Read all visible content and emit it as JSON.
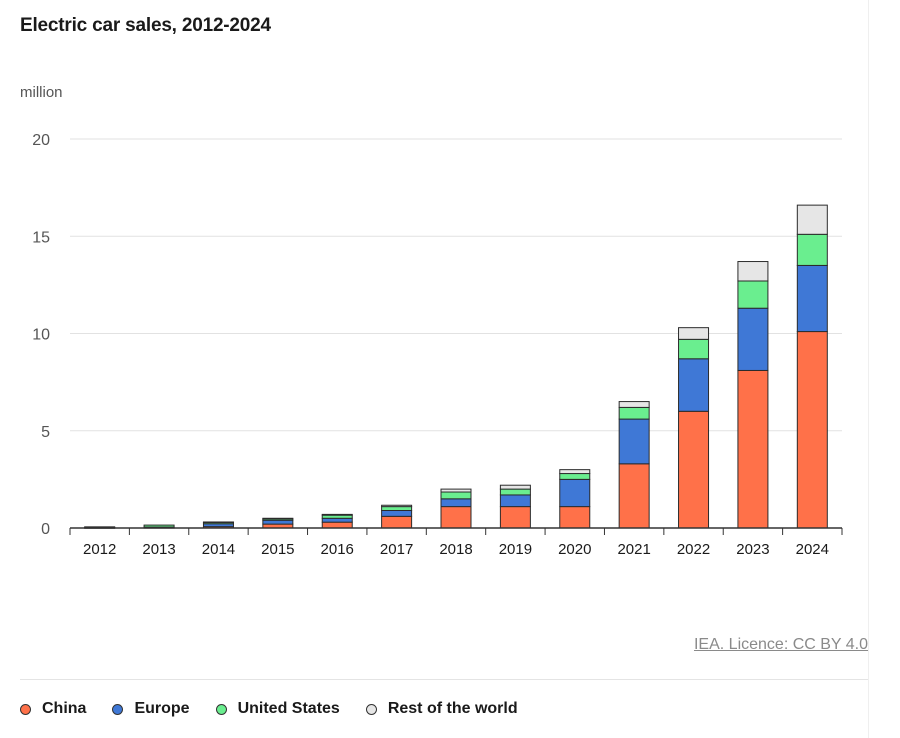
{
  "header": {
    "title": "Electric car sales, 2012-2024",
    "unit": "million"
  },
  "footer": {
    "source_link": "IEA. Licence: CC BY 4.0"
  },
  "legend": {
    "placement": "bottom-left",
    "items": [
      {
        "label": "China",
        "color": "#ff7149"
      },
      {
        "label": "Europe",
        "color": "#3f78d6"
      },
      {
        "label": "United States",
        "color": "#6aee8f"
      },
      {
        "label": "Rest of the world",
        "color": "#e6e6e6"
      }
    ]
  },
  "chart_data": {
    "type": "bar",
    "stacked": true,
    "title": "Electric car sales, 2012-2024",
    "xlabel": "",
    "ylabel": "million",
    "ylim": [
      0,
      20
    ],
    "yticks": [
      0,
      5,
      10,
      15,
      20
    ],
    "grid": true,
    "legend_position": "bottom",
    "categories": [
      "2012",
      "2013",
      "2014",
      "2015",
      "2016",
      "2017",
      "2018",
      "2019",
      "2020",
      "2021",
      "2022",
      "2023",
      "2024"
    ],
    "series": [
      {
        "name": "China",
        "color": "#ff7149",
        "values": [
          0.01,
          0.02,
          0.07,
          0.2,
          0.3,
          0.6,
          1.1,
          1.1,
          1.1,
          3.3,
          6.0,
          8.1,
          10.1
        ]
      },
      {
        "name": "Europe",
        "color": "#3f78d6",
        "values": [
          0.02,
          0.03,
          0.15,
          0.2,
          0.2,
          0.3,
          0.4,
          0.6,
          1.4,
          2.3,
          2.7,
          3.2,
          3.4
        ]
      },
      {
        "name": "United States",
        "color": "#6aee8f",
        "values": [
          0.03,
          0.1,
          0.07,
          0.07,
          0.16,
          0.2,
          0.35,
          0.3,
          0.3,
          0.6,
          1.0,
          1.4,
          1.6
        ]
      },
      {
        "name": "Rest of the world",
        "color": "#e6e6e6",
        "values": [
          0.0,
          0.0,
          0.02,
          0.03,
          0.04,
          0.07,
          0.15,
          0.2,
          0.2,
          0.3,
          0.6,
          1.0,
          1.5
        ]
      }
    ]
  }
}
